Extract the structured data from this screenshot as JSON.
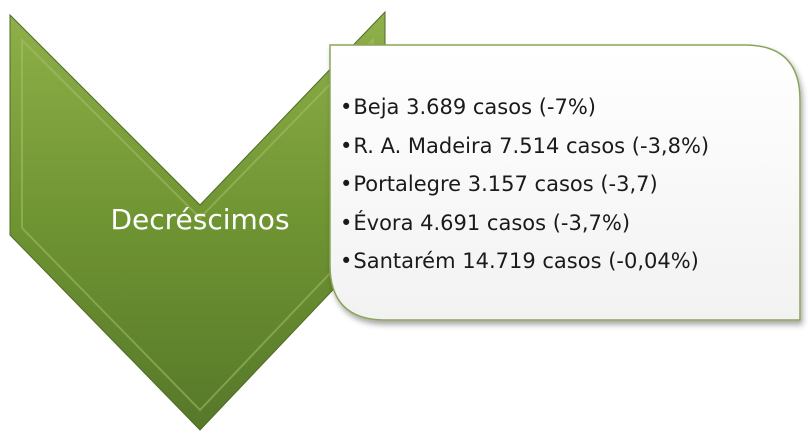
{
  "label": "Decréscimos",
  "items": [
    "Beja 3.689 casos (-7%)",
    "R. A. Madeira 7.514 casos (-3,8%)",
    "Portalegre 3.157 casos (-3,7)",
    "Évora 4.691 casos (-3,7%)",
    "Santarém 14.719 casos (-0,04%)"
  ]
}
